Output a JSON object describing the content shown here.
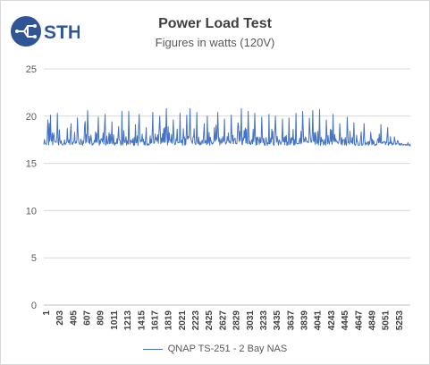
{
  "logo": {
    "text": "STH",
    "icon": "sth-circuit-logo",
    "color": "#2f5597"
  },
  "chart_data": {
    "type": "line",
    "title": "Power Load Test",
    "subtitle": "Figures in watts (120V)",
    "xlabel": "",
    "ylabel": "",
    "ylim": [
      0,
      25
    ],
    "yticks": [
      0,
      5,
      10,
      15,
      20,
      25
    ],
    "x_range": [
      1,
      5436
    ],
    "xtick_labels": [
      "1",
      "203",
      "405",
      "607",
      "809",
      "1011",
      "1213",
      "1415",
      "1617",
      "1819",
      "2021",
      "2223",
      "2425",
      "2627",
      "2829",
      "3031",
      "3233",
      "3435",
      "3637",
      "3839",
      "4041",
      "4243",
      "4445",
      "4647",
      "4849",
      "5051",
      "5253"
    ],
    "grid": true,
    "legend_position": "bottom",
    "series": [
      {
        "name": "QNAP TS-251 - 2 Bay NAS",
        "color": "#4472c4",
        "baseline": 16.9,
        "sample_x": [
          1,
          60,
          100,
          150,
          203,
          260,
          300,
          350,
          405,
          450,
          500,
          560,
          607,
          650,
          700,
          760,
          809,
          850,
          910,
          960,
          1011,
          1060,
          1110,
          1160,
          1213,
          1260,
          1320,
          1360,
          1415,
          1470,
          1520,
          1570,
          1617,
          1660,
          1720,
          1770,
          1819,
          1870,
          1920,
          1970,
          2021,
          2080,
          2120,
          2170,
          2223,
          2270,
          2320,
          2380,
          2425,
          2480,
          2530,
          2580,
          2627,
          2680,
          2730,
          2780,
          2829,
          2880,
          2930,
          2980,
          3031,
          3080,
          3130,
          3180,
          3233,
          3290,
          3340,
          3390,
          3435,
          3490,
          3540,
          3590,
          3637,
          3690,
          3740,
          3790,
          3839,
          3890,
          3940,
          3990,
          4041,
          4090,
          4140,
          4190,
          4243,
          4290,
          4340,
          4390,
          4445,
          4500,
          4550,
          4600,
          4647,
          4700,
          4750,
          4800,
          4849,
          4900,
          4950,
          5000,
          5051,
          5100,
          5150,
          5200,
          5253,
          5300,
          5350,
          5400,
          5436
        ],
        "sample_y": [
          17.0,
          19.6,
          20.1,
          18.2,
          20.3,
          17.4,
          17.1,
          18.7,
          19.2,
          17.5,
          19.8,
          17.3,
          19.1,
          20.6,
          18.0,
          17.2,
          19.9,
          17.6,
          20.2,
          17.4,
          19.4,
          17.2,
          18.9,
          20.5,
          17.5,
          20.5,
          17.6,
          19.1,
          20.2,
          17.3,
          18.8,
          17.2,
          20.4,
          17.5,
          20.0,
          17.3,
          20.8,
          17.5,
          19.6,
          17.4,
          20.3,
          17.6,
          20.1,
          20.8,
          17.8,
          20.4,
          17.3,
          19.2,
          20.0,
          17.4,
          18.8,
          20.4,
          17.6,
          19.7,
          17.4,
          20.1,
          17.6,
          19.3,
          20.8,
          17.7,
          20.5,
          17.4,
          20.3,
          17.6,
          19.9,
          17.4,
          20.2,
          17.6,
          20.0,
          17.5,
          19.7,
          17.3,
          19.8,
          17.5,
          20.3,
          17.4,
          20.5,
          17.6,
          19.8,
          20.6,
          17.5,
          20.7,
          17.4,
          19.6,
          17.5,
          20.2,
          17.3,
          19.2,
          17.5,
          19.9,
          17.4,
          19.3,
          17.3,
          17.8,
          19.2,
          17.2,
          18.3,
          17.1,
          17.5,
          19.1,
          17.3,
          18.8,
          17.1,
          17.8,
          17.4,
          17.1,
          17.0,
          17.2,
          16.8
        ]
      }
    ]
  }
}
